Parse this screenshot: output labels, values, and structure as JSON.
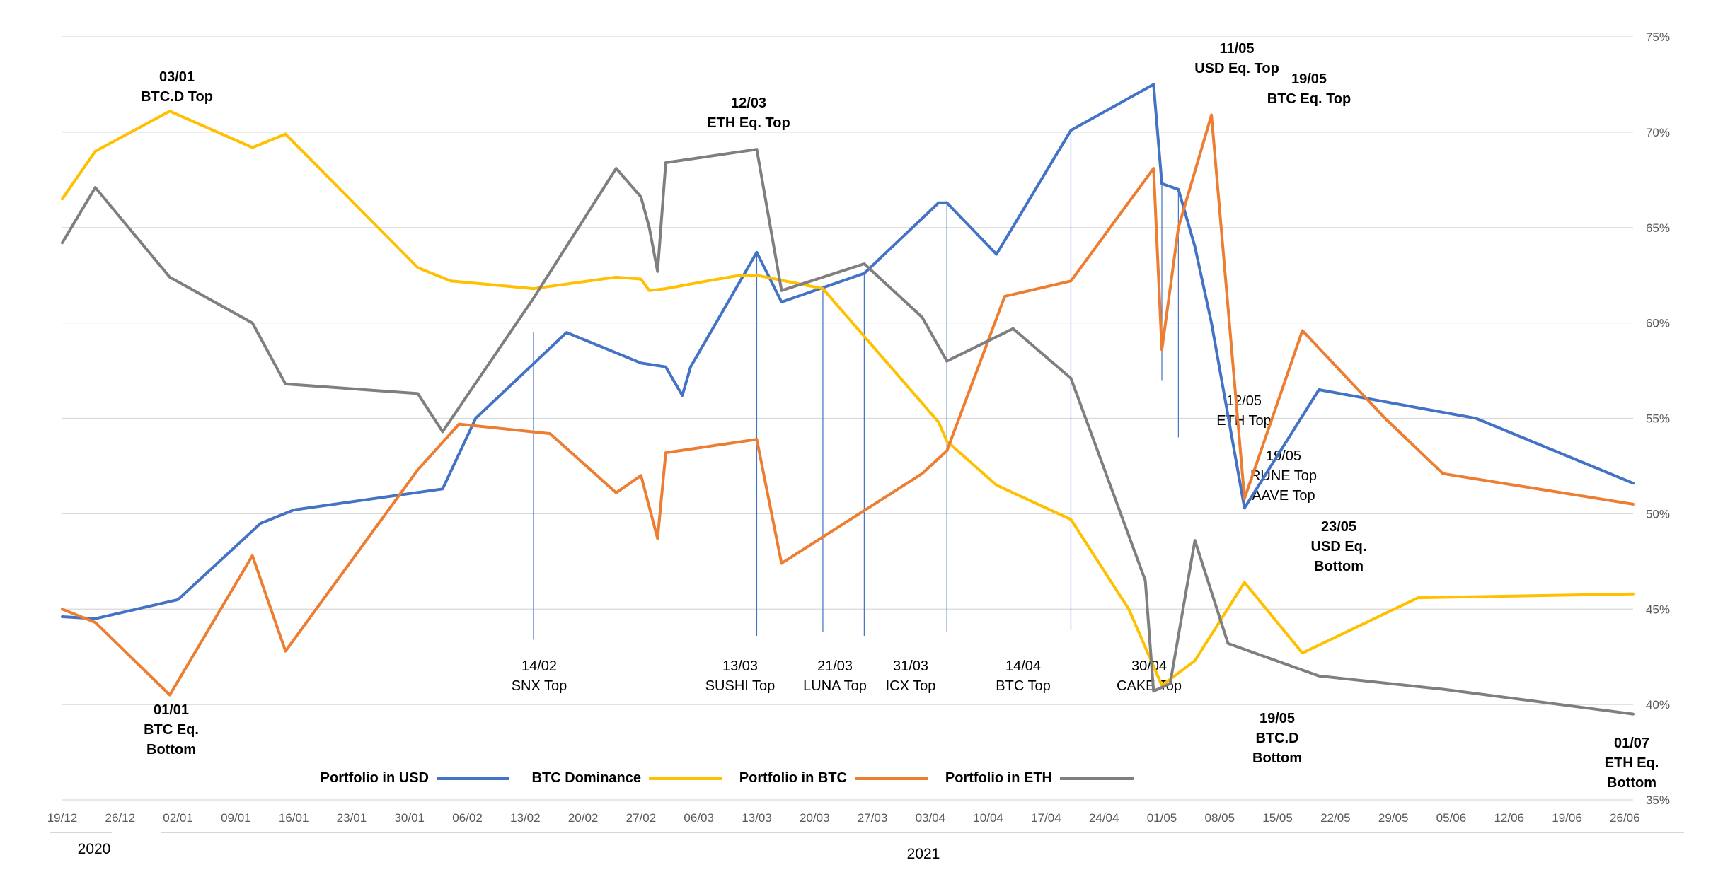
{
  "chart_data": {
    "type": "line",
    "title": "",
    "xlabel": "",
    "ylabel": "",
    "ylim": [
      35,
      75
    ],
    "y_tick_labels": [
      "35%",
      "40%",
      "45%",
      "50%",
      "55%",
      "60%",
      "65%",
      "70%",
      "75%"
    ],
    "x_tick_labels": [
      "19/12",
      "26/12",
      "02/01",
      "09/01",
      "16/01",
      "23/01",
      "30/01",
      "06/02",
      "13/02",
      "20/02",
      "27/02",
      "06/03",
      "13/03",
      "20/03",
      "27/03",
      "03/04",
      "10/04",
      "17/04",
      "24/04",
      "01/05",
      "08/05",
      "15/05",
      "22/05",
      "29/05",
      "05/06",
      "12/06",
      "19/06",
      "26/06"
    ],
    "year_labels": [
      "2020",
      "2021"
    ],
    "grid": true,
    "series": [
      {
        "name": "Portfolio in USD",
        "color": "#4472C4",
        "points": [
          [
            0,
            44.6
          ],
          [
            4,
            44.5
          ],
          [
            14,
            45.5
          ],
          [
            24,
            49.5
          ],
          [
            28,
            50.2
          ],
          [
            46,
            51.3
          ],
          [
            50,
            55.0
          ],
          [
            61,
            59.5
          ],
          [
            70,
            57.9
          ],
          [
            73,
            57.7
          ],
          [
            75,
            56.2
          ],
          [
            76,
            57.7
          ],
          [
            84,
            63.7
          ],
          [
            87,
            61.1
          ],
          [
            97,
            62.6
          ],
          [
            106,
            66.3
          ],
          [
            107,
            66.3
          ],
          [
            113,
            63.6
          ],
          [
            122,
            70.1
          ],
          [
            132,
            72.5
          ],
          [
            133,
            67.3
          ],
          [
            135,
            67.0
          ],
          [
            137,
            64.0
          ],
          [
            139,
            60.0
          ],
          [
            143,
            50.3
          ],
          [
            152,
            56.5
          ],
          [
            171,
            55.0
          ],
          [
            190,
            51.6
          ]
        ]
      },
      {
        "name": "BTC Dominance",
        "color": "#FFC000",
        "points": [
          [
            0,
            66.5
          ],
          [
            4,
            69.0
          ],
          [
            13,
            71.1
          ],
          [
            23,
            69.2
          ],
          [
            27,
            69.9
          ],
          [
            43,
            62.9
          ],
          [
            47,
            62.2
          ],
          [
            57,
            61.8
          ],
          [
            67,
            62.4
          ],
          [
            70,
            62.3
          ],
          [
            71,
            61.7
          ],
          [
            73,
            61.8
          ],
          [
            78,
            62.2
          ],
          [
            82,
            62.5
          ],
          [
            84,
            62.5
          ],
          [
            92,
            61.8
          ],
          [
            106,
            54.8
          ],
          [
            107,
            53.8
          ],
          [
            113,
            51.5
          ],
          [
            122,
            49.7
          ],
          [
            129,
            45.0
          ],
          [
            133,
            41.0
          ],
          [
            137,
            42.3
          ],
          [
            143,
            46.4
          ],
          [
            150,
            42.7
          ],
          [
            164,
            45.6
          ],
          [
            190,
            45.8
          ]
        ]
      },
      {
        "name": "Portfolio in BTC",
        "color": "#ED7D31",
        "points": [
          [
            0,
            45.0
          ],
          [
            4,
            44.3
          ],
          [
            13,
            40.5
          ],
          [
            23,
            47.8
          ],
          [
            27,
            42.8
          ],
          [
            43,
            52.3
          ],
          [
            48,
            54.7
          ],
          [
            59,
            54.2
          ],
          [
            67,
            51.1
          ],
          [
            70,
            52.0
          ],
          [
            72,
            48.7
          ],
          [
            73,
            53.2
          ],
          [
            84,
            53.9
          ],
          [
            87,
            47.4
          ],
          [
            104,
            52.1
          ],
          [
            107,
            53.3
          ],
          [
            114,
            61.4
          ],
          [
            122,
            62.2
          ],
          [
            132,
            68.1
          ],
          [
            133,
            58.6
          ],
          [
            135,
            65.0
          ],
          [
            139,
            70.9
          ],
          [
            143,
            50.8
          ],
          [
            150,
            59.6
          ],
          [
            160,
            55.0
          ],
          [
            167,
            52.1
          ],
          [
            190,
            50.5
          ]
        ]
      },
      {
        "name": "Portfolio in ETH",
        "color": "#7F7F7F",
        "points": [
          [
            0,
            64.2
          ],
          [
            4,
            67.1
          ],
          [
            13,
            62.4
          ],
          [
            23,
            60.0
          ],
          [
            27,
            56.8
          ],
          [
            43,
            56.3
          ],
          [
            46,
            54.3
          ],
          [
            57,
            61.3
          ],
          [
            67,
            68.1
          ],
          [
            70,
            66.6
          ],
          [
            71,
            65.0
          ],
          [
            72,
            62.7
          ],
          [
            73,
            68.4
          ],
          [
            84,
            69.1
          ],
          [
            87,
            61.7
          ],
          [
            97,
            63.1
          ],
          [
            104,
            60.3
          ],
          [
            107,
            58.0
          ],
          [
            115,
            59.7
          ],
          [
            122,
            57.1
          ],
          [
            131,
            46.5
          ],
          [
            132,
            40.7
          ],
          [
            134,
            41.1
          ],
          [
            137,
            48.6
          ],
          [
            141,
            43.2
          ],
          [
            152,
            41.5
          ],
          [
            167,
            40.8
          ],
          [
            190,
            39.5
          ]
        ]
      }
    ],
    "markers": [
      {
        "label": "14/02",
        "sub": "SNX Top"
      },
      {
        "label": "13/03",
        "sub": "SUSHI Top"
      },
      {
        "label": "21/03",
        "sub": "LUNA Top"
      },
      {
        "label": "31/03",
        "sub": "ICX Top"
      },
      {
        "label": "14/04",
        "sub": "BTC Top"
      },
      {
        "label": "30/04",
        "sub": "CAKE Top"
      },
      {
        "label": "12/05",
        "sub": "ETH Top"
      },
      {
        "label": "19/05",
        "sub": "RUNE Top",
        "sub2": "AAVE Top"
      }
    ],
    "bold_annotations": [
      {
        "line1": "03/01",
        "line2": "BTC.D Top"
      },
      {
        "line1": "12/03",
        "line2": "ETH Eq. Top"
      },
      {
        "line1": "11/05",
        "line2": "USD Eq. Top"
      },
      {
        "line1": "19/05",
        "line2": "BTC Eq. Top"
      },
      {
        "line1": "01/01",
        "line2": "BTC Eq.",
        "line3": "Bottom"
      },
      {
        "line1": "23/05",
        "line2": "USD Eq.",
        "line3": "Bottom"
      },
      {
        "line1": "19/05",
        "line2": "BTC.D",
        "line3": "Bottom"
      },
      {
        "line1": "01/07",
        "line2": "ETH Eq.",
        "line3": "Bottom"
      }
    ]
  }
}
